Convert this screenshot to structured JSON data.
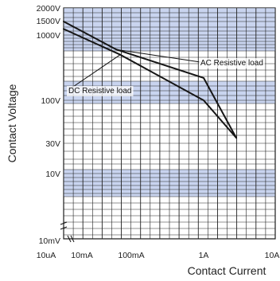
{
  "chart_data": {
    "type": "line",
    "title": "",
    "xlabel": "Contact Current",
    "ylabel": "Contact Voltage",
    "x_scale": "log",
    "y_scale": "log",
    "x_axis_break": "between 10uA and 10mA",
    "y_axis_break": "between 10mV and 10V",
    "x_ticks": [
      "10uA",
      "10mA",
      "100mA",
      "1A",
      "10A"
    ],
    "y_ticks": [
      "2000V",
      "1500V",
      "1000V",
      "100V",
      "30V",
      "10V",
      "10mV"
    ],
    "grid": true,
    "series": [
      {
        "name": "AC Resistive load",
        "points": [
          {
            "x": "10mA",
            "y": "1500V"
          },
          {
            "x": "50mA",
            "y": "600V"
          },
          {
            "x": "1A",
            "y": "220V"
          },
          {
            "x": "3A",
            "y": "35V"
          }
        ]
      },
      {
        "name": "DC Resistive load",
        "points": [
          {
            "x": "10mA",
            "y": "1200V"
          },
          {
            "x": "60mA",
            "y": "500V"
          },
          {
            "x": "1A",
            "y": "100V"
          },
          {
            "x": "3A",
            "y": "35V"
          }
        ]
      }
    ]
  }
}
